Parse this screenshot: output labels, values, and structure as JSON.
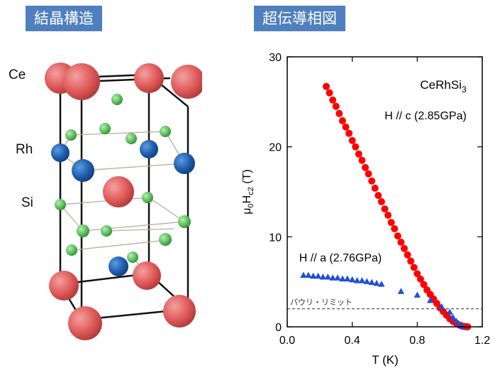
{
  "panels": {
    "left_title": "結晶構造",
    "right_title": "超伝導相図"
  },
  "structure": {
    "compound_atoms": [
      {
        "label": "Ce",
        "color": "#e05a5a"
      },
      {
        "label": "Rh",
        "color": "#1f5eb0"
      },
      {
        "label": "Si",
        "color": "#5cc05c"
      }
    ]
  },
  "colors": {
    "tag_bg": "#4f7fbf",
    "series_c": "#ff0000",
    "series_a": "#1f4fd8"
  },
  "chart_data": {
    "type": "scatter",
    "compound": "CeRhSi",
    "compound_subscript": "3",
    "xlabel": "T (K)",
    "ylabel_parts": {
      "mu": "μ",
      "mu_sub": "0",
      "H": "H",
      "H_sub": "c2",
      "unit": " (T)"
    },
    "xlim": [
      0.0,
      1.2
    ],
    "ylim": [
      0,
      30
    ],
    "xticks": [
      "0.0",
      "0.4",
      "0.8",
      "1.2"
    ],
    "yticks": [
      "0",
      "10",
      "20",
      "30"
    ],
    "xtick_values": [
      0.0,
      0.4,
      0.8,
      1.2
    ],
    "ytick_values": [
      0,
      10,
      20,
      30
    ],
    "pauli_limit": {
      "value": 2.0,
      "label": "パウリ・リミット"
    },
    "series": [
      {
        "name": "H // c (2.85GPa)",
        "marker": "circle",
        "x": [
          0.24,
          0.26,
          0.28,
          0.3,
          0.32,
          0.34,
          0.36,
          0.38,
          0.4,
          0.42,
          0.44,
          0.46,
          0.48,
          0.5,
          0.52,
          0.54,
          0.56,
          0.58,
          0.6,
          0.62,
          0.64,
          0.66,
          0.68,
          0.7,
          0.72,
          0.74,
          0.76,
          0.78,
          0.8,
          0.82,
          0.84,
          0.86,
          0.88,
          0.9,
          0.92,
          0.94,
          0.96,
          0.98,
          1.0,
          1.02,
          1.04,
          1.06,
          1.07,
          1.08,
          1.09,
          1.1,
          1.11
        ],
        "y": [
          26.7,
          26.0,
          25.2,
          24.5,
          23.7,
          22.9,
          22.2,
          21.5,
          20.7,
          20.0,
          19.2,
          18.5,
          17.7,
          17.0,
          16.2,
          15.4,
          14.6,
          13.9,
          13.1,
          12.4,
          11.6,
          10.9,
          10.1,
          9.4,
          8.7,
          8.0,
          7.3,
          6.6,
          5.9,
          5.3,
          4.7,
          4.1,
          3.6,
          3.1,
          2.6,
          2.1,
          1.7,
          1.3,
          0.9,
          0.6,
          0.4,
          0.2,
          0.12,
          0.06,
          0.03,
          0.01,
          0.0
        ]
      },
      {
        "name": "H // a (2.76GPa)",
        "marker": "triangle",
        "x": [
          0.1,
          0.13,
          0.16,
          0.19,
          0.22,
          0.25,
          0.28,
          0.31,
          0.34,
          0.37,
          0.4,
          0.43,
          0.46,
          0.49,
          0.52,
          0.55,
          0.58,
          0.7,
          0.8,
          0.88,
          0.95,
          1.0,
          1.02,
          1.04,
          1.06,
          1.08
        ],
        "y": [
          5.7,
          5.7,
          5.6,
          5.6,
          5.5,
          5.5,
          5.4,
          5.4,
          5.3,
          5.3,
          5.2,
          5.1,
          5.1,
          5.0,
          4.9,
          4.8,
          4.7,
          3.9,
          3.5,
          2.9,
          2.2,
          1.6,
          1.0,
          0.6,
          0.2,
          0.0
        ]
      }
    ]
  }
}
